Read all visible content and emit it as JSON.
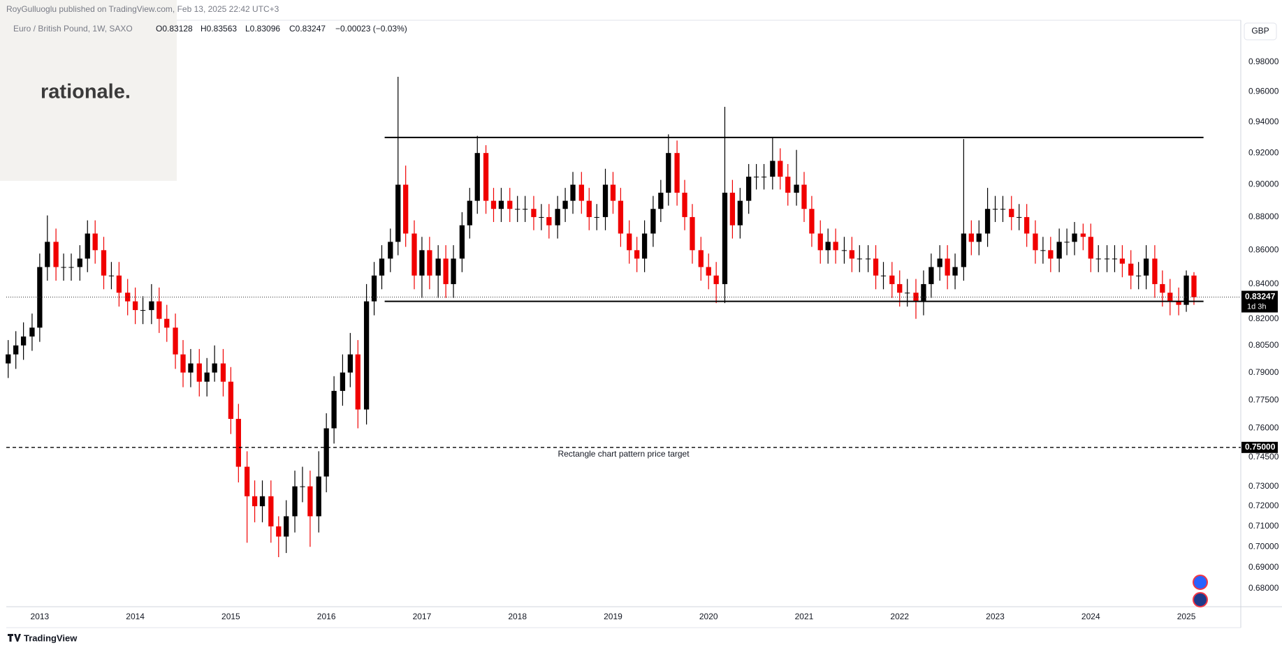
{
  "header": {
    "publisher": "RoyGulluoglu published on TradingView.com, Feb 13, 2025 22:42 UTC+3",
    "symbol": "Euro / British Pound, 1W, SAXO",
    "ohlc": [
      "O0.83128",
      "H0.83563",
      "L0.83096",
      "C0.83247",
      "−0.00023 (−0.03%)"
    ],
    "logo": "rationale.",
    "currency": "GBP"
  },
  "footer": "TradingView",
  "chart_data": {
    "type": "candlestick",
    "log_scale": true,
    "grid": false,
    "up_color": "#000000",
    "down_color": "#f00000",
    "xlim": [
      2012.65,
      2025.57
    ],
    "xticks": [
      2013,
      2014,
      2015,
      2016,
      2017,
      2018,
      2019,
      2020,
      2021,
      2022,
      2023,
      2024,
      2025
    ],
    "ylim": [
      0.6715,
      1.0088
    ],
    "yticks": [
      {
        "value": 0.98,
        "label": "0.98000"
      },
      {
        "value": 0.96,
        "label": "0.96000"
      },
      {
        "value": 0.94,
        "label": "0.94000"
      },
      {
        "value": 0.92,
        "label": "0.92000"
      },
      {
        "value": 0.9,
        "label": "0.90000"
      },
      {
        "value": 0.88,
        "label": "0.88000"
      },
      {
        "value": 0.86,
        "label": "0.86000"
      },
      {
        "value": 0.84,
        "label": "0.84000"
      },
      {
        "value": 0.82,
        "label": "0.82000"
      },
      {
        "value": 0.805,
        "label": "0.80500"
      },
      {
        "value": 0.79,
        "label": "0.79000"
      },
      {
        "value": 0.775,
        "label": "0.77500"
      },
      {
        "value": 0.76,
        "label": "0.76000"
      },
      {
        "value": 0.745,
        "label": "0.74500"
      },
      {
        "value": 0.73,
        "label": "0.73000"
      },
      {
        "value": 0.72,
        "label": "0.72000"
      },
      {
        "value": 0.71,
        "label": "0.71000"
      },
      {
        "value": 0.7,
        "label": "0.70000"
      },
      {
        "value": 0.69,
        "label": "0.69000"
      },
      {
        "value": 0.68,
        "label": "0.68000"
      }
    ],
    "x": [
      2012.67,
      2012.75,
      2012.83,
      2012.92,
      2013.0,
      2013.08,
      2013.17,
      2013.25,
      2013.33,
      2013.42,
      2013.5,
      2013.58,
      2013.67,
      2013.75,
      2013.83,
      2013.92,
      2014.0,
      2014.08,
      2014.17,
      2014.25,
      2014.33,
      2014.42,
      2014.5,
      2014.58,
      2014.67,
      2014.75,
      2014.83,
      2014.92,
      2015.0,
      2015.08,
      2015.17,
      2015.25,
      2015.33,
      2015.42,
      2015.5,
      2015.58,
      2015.67,
      2015.75,
      2015.83,
      2015.92,
      2016.0,
      2016.08,
      2016.17,
      2016.25,
      2016.33,
      2016.42,
      2016.5,
      2016.58,
      2016.67,
      2016.75,
      2016.83,
      2016.92,
      2017.0,
      2017.08,
      2017.17,
      2017.25,
      2017.33,
      2017.42,
      2017.5,
      2017.58,
      2017.67,
      2017.75,
      2017.83,
      2017.92,
      2018.0,
      2018.08,
      2018.17,
      2018.25,
      2018.33,
      2018.42,
      2018.5,
      2018.58,
      2018.67,
      2018.75,
      2018.83,
      2018.92,
      2019.0,
      2019.08,
      2019.17,
      2019.25,
      2019.33,
      2019.42,
      2019.5,
      2019.58,
      2019.67,
      2019.75,
      2019.83,
      2019.92,
      2020.0,
      2020.08,
      2020.17,
      2020.25,
      2020.33,
      2020.42,
      2020.5,
      2020.58,
      2020.67,
      2020.75,
      2020.83,
      2020.92,
      2021.0,
      2021.08,
      2021.17,
      2021.25,
      2021.33,
      2021.42,
      2021.5,
      2021.58,
      2021.67,
      2021.75,
      2021.83,
      2021.92,
      2022.0,
      2022.08,
      2022.17,
      2022.25,
      2022.33,
      2022.42,
      2022.5,
      2022.58,
      2022.67,
      2022.75,
      2022.83,
      2022.92,
      2023.0,
      2023.08,
      2023.17,
      2023.25,
      2023.33,
      2023.42,
      2023.5,
      2023.58,
      2023.67,
      2023.75,
      2023.83,
      2023.92,
      2024.0,
      2024.08,
      2024.17,
      2024.25,
      2024.33,
      2024.42,
      2024.5,
      2024.58,
      2024.67,
      2024.75,
      2024.83,
      2024.92,
      2025.0,
      2025.08
    ],
    "open": [
      0.795,
      0.8,
      0.805,
      0.81,
      0.815,
      0.85,
      0.865,
      0.85,
      0.85,
      0.85,
      0.855,
      0.87,
      0.86,
      0.845,
      0.845,
      0.835,
      0.83,
      0.825,
      0.825,
      0.83,
      0.82,
      0.815,
      0.8,
      0.79,
      0.795,
      0.785,
      0.79,
      0.795,
      0.785,
      0.765,
      0.74,
      0.725,
      0.72,
      0.725,
      0.71,
      0.705,
      0.715,
      0.73,
      0.73,
      0.715,
      0.735,
      0.76,
      0.78,
      0.79,
      0.8,
      0.77,
      0.83,
      0.845,
      0.855,
      0.865,
      0.9,
      0.87,
      0.845,
      0.86,
      0.845,
      0.855,
      0.84,
      0.855,
      0.875,
      0.89,
      0.92,
      0.89,
      0.885,
      0.89,
      0.885,
      0.885,
      0.885,
      0.88,
      0.88,
      0.875,
      0.885,
      0.89,
      0.9,
      0.89,
      0.88,
      0.88,
      0.9,
      0.89,
      0.87,
      0.86,
      0.855,
      0.87,
      0.885,
      0.895,
      0.92,
      0.895,
      0.88,
      0.86,
      0.85,
      0.845,
      0.84,
      0.895,
      0.875,
      0.89,
      0.905,
      0.905,
      0.905,
      0.915,
      0.905,
      0.895,
      0.9,
      0.885,
      0.87,
      0.86,
      0.865,
      0.86,
      0.86,
      0.855,
      0.855,
      0.855,
      0.845,
      0.845,
      0.84,
      0.835,
      0.835,
      0.83,
      0.84,
      0.85,
      0.855,
      0.845,
      0.85,
      0.87,
      0.865,
      0.87,
      0.885,
      0.885,
      0.885,
      0.88,
      0.88,
      0.87,
      0.86,
      0.86,
      0.855,
      0.865,
      0.865,
      0.87,
      0.868,
      0.855,
      0.855,
      0.855,
      0.855,
      0.852,
      0.845,
      0.845,
      0.855,
      0.84,
      0.835,
      0.83,
      0.828,
      0.845
    ],
    "high": [
      0.808,
      0.813,
      0.818,
      0.823,
      0.858,
      0.881,
      0.873,
      0.858,
      0.858,
      0.863,
      0.878,
      0.878,
      0.868,
      0.853,
      0.853,
      0.843,
      0.838,
      0.833,
      0.84,
      0.838,
      0.828,
      0.823,
      0.808,
      0.803,
      0.803,
      0.798,
      0.805,
      0.803,
      0.793,
      0.773,
      0.748,
      0.733,
      0.733,
      0.733,
      0.715,
      0.723,
      0.738,
      0.74,
      0.738,
      0.748,
      0.768,
      0.788,
      0.8,
      0.812,
      0.808,
      0.84,
      0.853,
      0.863,
      0.873,
      0.97,
      0.912,
      0.878,
      0.868,
      0.868,
      0.863,
      0.863,
      0.863,
      0.883,
      0.898,
      0.931,
      0.925,
      0.898,
      0.898,
      0.898,
      0.893,
      0.893,
      0.893,
      0.888,
      0.888,
      0.893,
      0.898,
      0.908,
      0.908,
      0.898,
      0.888,
      0.91,
      0.908,
      0.898,
      0.878,
      0.868,
      0.878,
      0.893,
      0.903,
      0.932,
      0.928,
      0.903,
      0.888,
      0.868,
      0.858,
      0.853,
      0.95,
      0.903,
      0.898,
      0.913,
      0.913,
      0.913,
      0.93,
      0.923,
      0.913,
      0.922,
      0.908,
      0.893,
      0.878,
      0.873,
      0.873,
      0.868,
      0.868,
      0.863,
      0.863,
      0.863,
      0.853,
      0.853,
      0.848,
      0.843,
      0.843,
      0.848,
      0.858,
      0.863,
      0.863,
      0.858,
      0.929,
      0.878,
      0.878,
      0.898,
      0.893,
      0.893,
      0.893,
      0.888,
      0.888,
      0.878,
      0.868,
      0.868,
      0.873,
      0.873,
      0.877,
      0.876,
      0.876,
      0.863,
      0.863,
      0.863,
      0.863,
      0.86,
      0.853,
      0.863,
      0.863,
      0.848,
      0.843,
      0.838,
      0.848,
      0.847
    ],
    "low": [
      0.787,
      0.792,
      0.797,
      0.802,
      0.807,
      0.842,
      0.842,
      0.842,
      0.842,
      0.842,
      0.847,
      0.852,
      0.837,
      0.837,
      0.827,
      0.822,
      0.817,
      0.817,
      0.817,
      0.812,
      0.807,
      0.792,
      0.782,
      0.782,
      0.777,
      0.777,
      0.785,
      0.777,
      0.757,
      0.732,
      0.702,
      0.712,
      0.712,
      0.702,
      0.695,
      0.697,
      0.707,
      0.722,
      0.7,
      0.707,
      0.727,
      0.752,
      0.772,
      0.782,
      0.76,
      0.762,
      0.822,
      0.837,
      0.847,
      0.857,
      0.862,
      0.837,
      0.832,
      0.837,
      0.832,
      0.832,
      0.832,
      0.847,
      0.867,
      0.882,
      0.882,
      0.877,
      0.877,
      0.877,
      0.877,
      0.877,
      0.872,
      0.872,
      0.867,
      0.867,
      0.877,
      0.882,
      0.882,
      0.872,
      0.872,
      0.872,
      0.882,
      0.862,
      0.852,
      0.847,
      0.847,
      0.862,
      0.877,
      0.887,
      0.887,
      0.872,
      0.852,
      0.842,
      0.837,
      0.829,
      0.829,
      0.867,
      0.867,
      0.882,
      0.897,
      0.897,
      0.897,
      0.897,
      0.887,
      0.887,
      0.877,
      0.862,
      0.852,
      0.852,
      0.852,
      0.852,
      0.847,
      0.847,
      0.847,
      0.837,
      0.837,
      0.832,
      0.827,
      0.827,
      0.82,
      0.822,
      0.832,
      0.842,
      0.837,
      0.837,
      0.842,
      0.857,
      0.857,
      0.862,
      0.877,
      0.877,
      0.872,
      0.872,
      0.862,
      0.852,
      0.852,
      0.847,
      0.847,
      0.857,
      0.857,
      0.86,
      0.847,
      0.847,
      0.847,
      0.847,
      0.844,
      0.837,
      0.837,
      0.837,
      0.832,
      0.827,
      0.822,
      0.822,
      0.824,
      0.828
    ],
    "close": [
      0.8,
      0.805,
      0.81,
      0.815,
      0.85,
      0.865,
      0.85,
      0.85,
      0.85,
      0.855,
      0.87,
      0.86,
      0.845,
      0.845,
      0.835,
      0.83,
      0.825,
      0.825,
      0.83,
      0.82,
      0.815,
      0.8,
      0.79,
      0.795,
      0.785,
      0.79,
      0.795,
      0.785,
      0.765,
      0.74,
      0.725,
      0.72,
      0.725,
      0.71,
      0.705,
      0.715,
      0.73,
      0.73,
      0.715,
      0.735,
      0.76,
      0.78,
      0.79,
      0.8,
      0.77,
      0.83,
      0.845,
      0.855,
      0.865,
      0.9,
      0.87,
      0.845,
      0.86,
      0.845,
      0.855,
      0.84,
      0.855,
      0.875,
      0.89,
      0.92,
      0.89,
      0.885,
      0.89,
      0.885,
      0.885,
      0.885,
      0.88,
      0.88,
      0.875,
      0.885,
      0.89,
      0.9,
      0.89,
      0.88,
      0.88,
      0.9,
      0.89,
      0.87,
      0.86,
      0.855,
      0.87,
      0.885,
      0.895,
      0.92,
      0.895,
      0.88,
      0.86,
      0.85,
      0.845,
      0.84,
      0.895,
      0.875,
      0.89,
      0.905,
      0.905,
      0.905,
      0.915,
      0.905,
      0.895,
      0.9,
      0.885,
      0.87,
      0.86,
      0.865,
      0.86,
      0.86,
      0.855,
      0.855,
      0.855,
      0.845,
      0.845,
      0.84,
      0.835,
      0.835,
      0.83,
      0.84,
      0.85,
      0.855,
      0.845,
      0.85,
      0.87,
      0.865,
      0.87,
      0.885,
      0.885,
      0.885,
      0.88,
      0.88,
      0.87,
      0.86,
      0.86,
      0.855,
      0.865,
      0.865,
      0.87,
      0.868,
      0.855,
      0.855,
      0.855,
      0.855,
      0.852,
      0.845,
      0.845,
      0.855,
      0.84,
      0.835,
      0.83,
      0.828,
      0.845,
      0.83247
    ],
    "countdown": "1d 3h",
    "levels": [
      {
        "value": 0.93,
        "x": [
          2016.61,
          2025.18
        ]
      },
      {
        "value": 0.83,
        "x": [
          2016.61,
          2025.18
        ]
      }
    ],
    "target": {
      "value": 0.75,
      "label": "0.75000",
      "text": "Rectangle chart pattern price target"
    }
  }
}
